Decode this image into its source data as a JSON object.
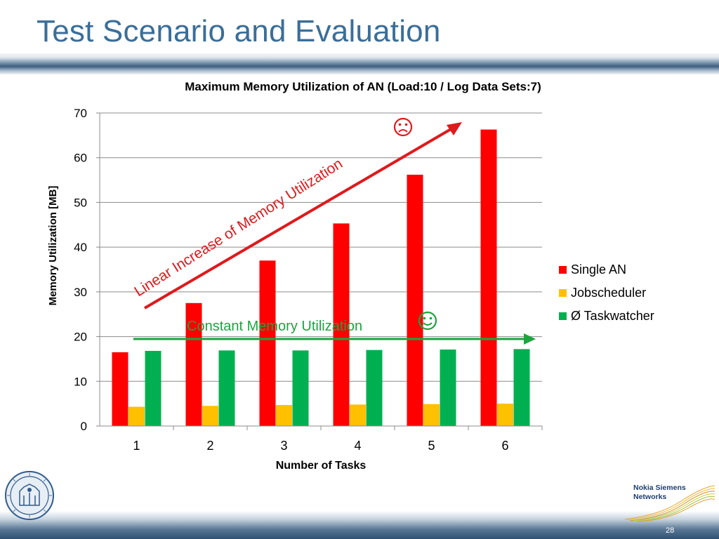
{
  "slide": {
    "title": "Test Scenario and Evaluation",
    "page_number": "28",
    "brand_logo_text": "Nokia Siemens Networks"
  },
  "annotations": {
    "linear_text": "Linear Increase of Memory Utilization",
    "linear_icon": "frowning-face-icon",
    "constant_text": "Constant Memory Utilization",
    "constant_icon": "smiling-face-icon"
  },
  "colors": {
    "title": "#3a6e99",
    "single_an": "#ff0000",
    "jobscheduler": "#ffc000",
    "taskwatcher": "#00b050",
    "linear_annotation": "#e0191c",
    "constant_annotation": "#1aa53f"
  },
  "chart_data": {
    "type": "bar",
    "title": "Maximum Memory Utilization of AN (Load:10 / Log Data Sets:7)",
    "xlabel": "Number of Tasks",
    "ylabel": "Memory Utilization [MB]",
    "ylim": [
      0,
      70
    ],
    "yticks": [
      0,
      10,
      20,
      30,
      40,
      50,
      60,
      70
    ],
    "categories": [
      "1",
      "2",
      "3",
      "4",
      "5",
      "6"
    ],
    "grid": true,
    "legend_position": "right",
    "series": [
      {
        "name": "Single AN",
        "color": "#ff0000",
        "values": [
          16.5,
          27.5,
          37.0,
          45.3,
          56.2,
          66.3
        ]
      },
      {
        "name": "Jobscheduler",
        "color": "#ffc000",
        "values": [
          4.3,
          4.5,
          4.7,
          4.8,
          4.9,
          5.0
        ]
      },
      {
        "name": "Ø Taskwatcher",
        "color": "#00b050",
        "values": [
          16.8,
          16.9,
          16.9,
          17.0,
          17.1,
          17.2
        ]
      }
    ]
  }
}
